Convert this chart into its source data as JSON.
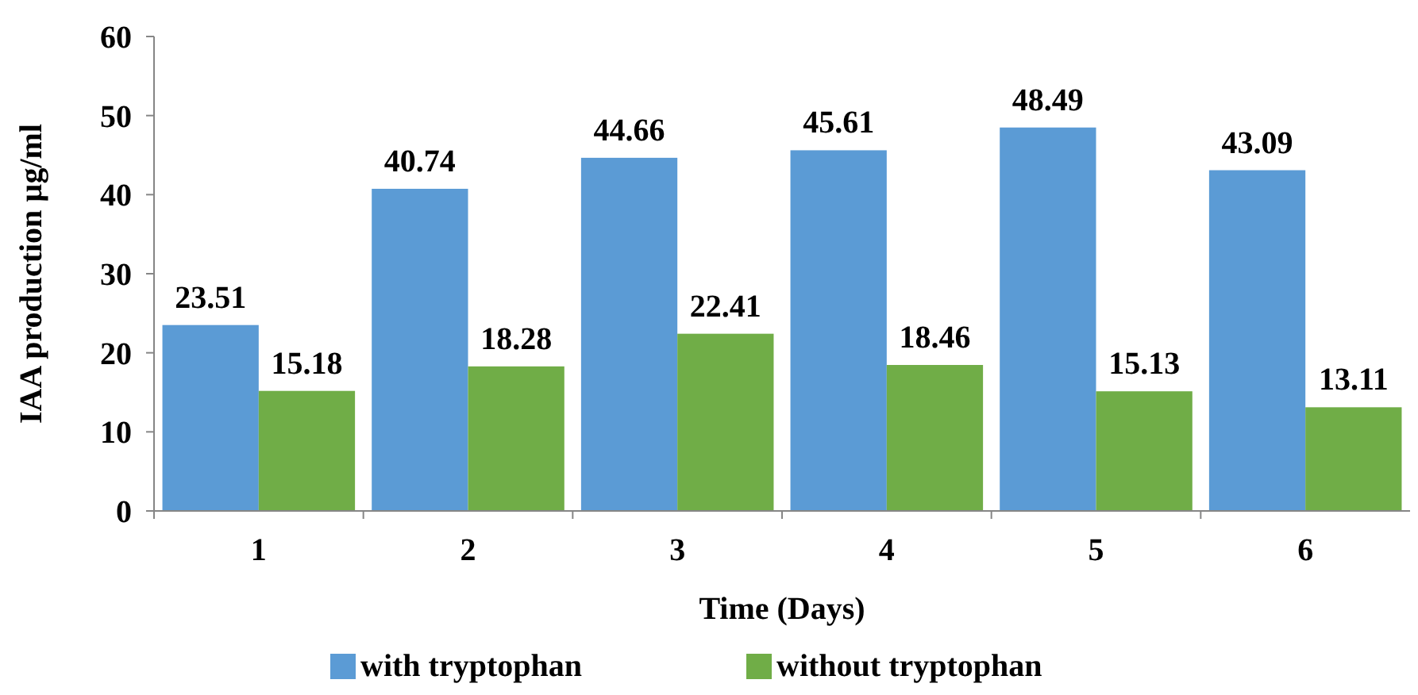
{
  "chart_data": {
    "type": "bar",
    "xlabel": "Time (Days)",
    "ylabel": "IAA production µg/ml",
    "categories": [
      "1",
      "2",
      "3",
      "4",
      "5",
      "6"
    ],
    "series": [
      {
        "name": "with tryptophan",
        "color": "#5b9bd5",
        "values": [
          23.51,
          40.74,
          44.66,
          45.61,
          48.49,
          43.09
        ]
      },
      {
        "name": "without tryptophan",
        "color": "#70ad47",
        "values": [
          15.18,
          18.28,
          22.41,
          18.46,
          15.13,
          13.11
        ]
      }
    ],
    "ylim": [
      0,
      60
    ],
    "yticks": [
      0,
      10,
      20,
      30,
      40,
      50,
      60
    ],
    "data_labels": true,
    "legend": "bottom",
    "grid": false
  }
}
